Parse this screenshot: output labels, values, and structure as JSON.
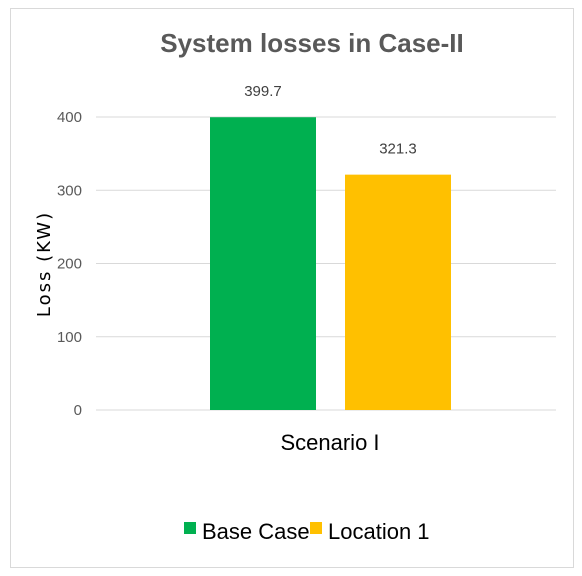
{
  "chart_data": {
    "type": "bar",
    "title": "System losses in Case-II",
    "xlabel": "",
    "ylabel": "Loss (KW)",
    "categories": [
      "Scenario I"
    ],
    "series": [
      {
        "name": "Base Case",
        "values": [
          399.7
        ],
        "color": "#00b050"
      },
      {
        "name": "Location 1",
        "values": [
          321.3
        ],
        "color": "#ffc000"
      }
    ],
    "data_labels": [
      "399.7",
      "321.3"
    ],
    "yticks": [
      0,
      100,
      200,
      300,
      400
    ],
    "ylim": [
      0,
      400
    ],
    "grid": true,
    "legend": "bottom"
  }
}
